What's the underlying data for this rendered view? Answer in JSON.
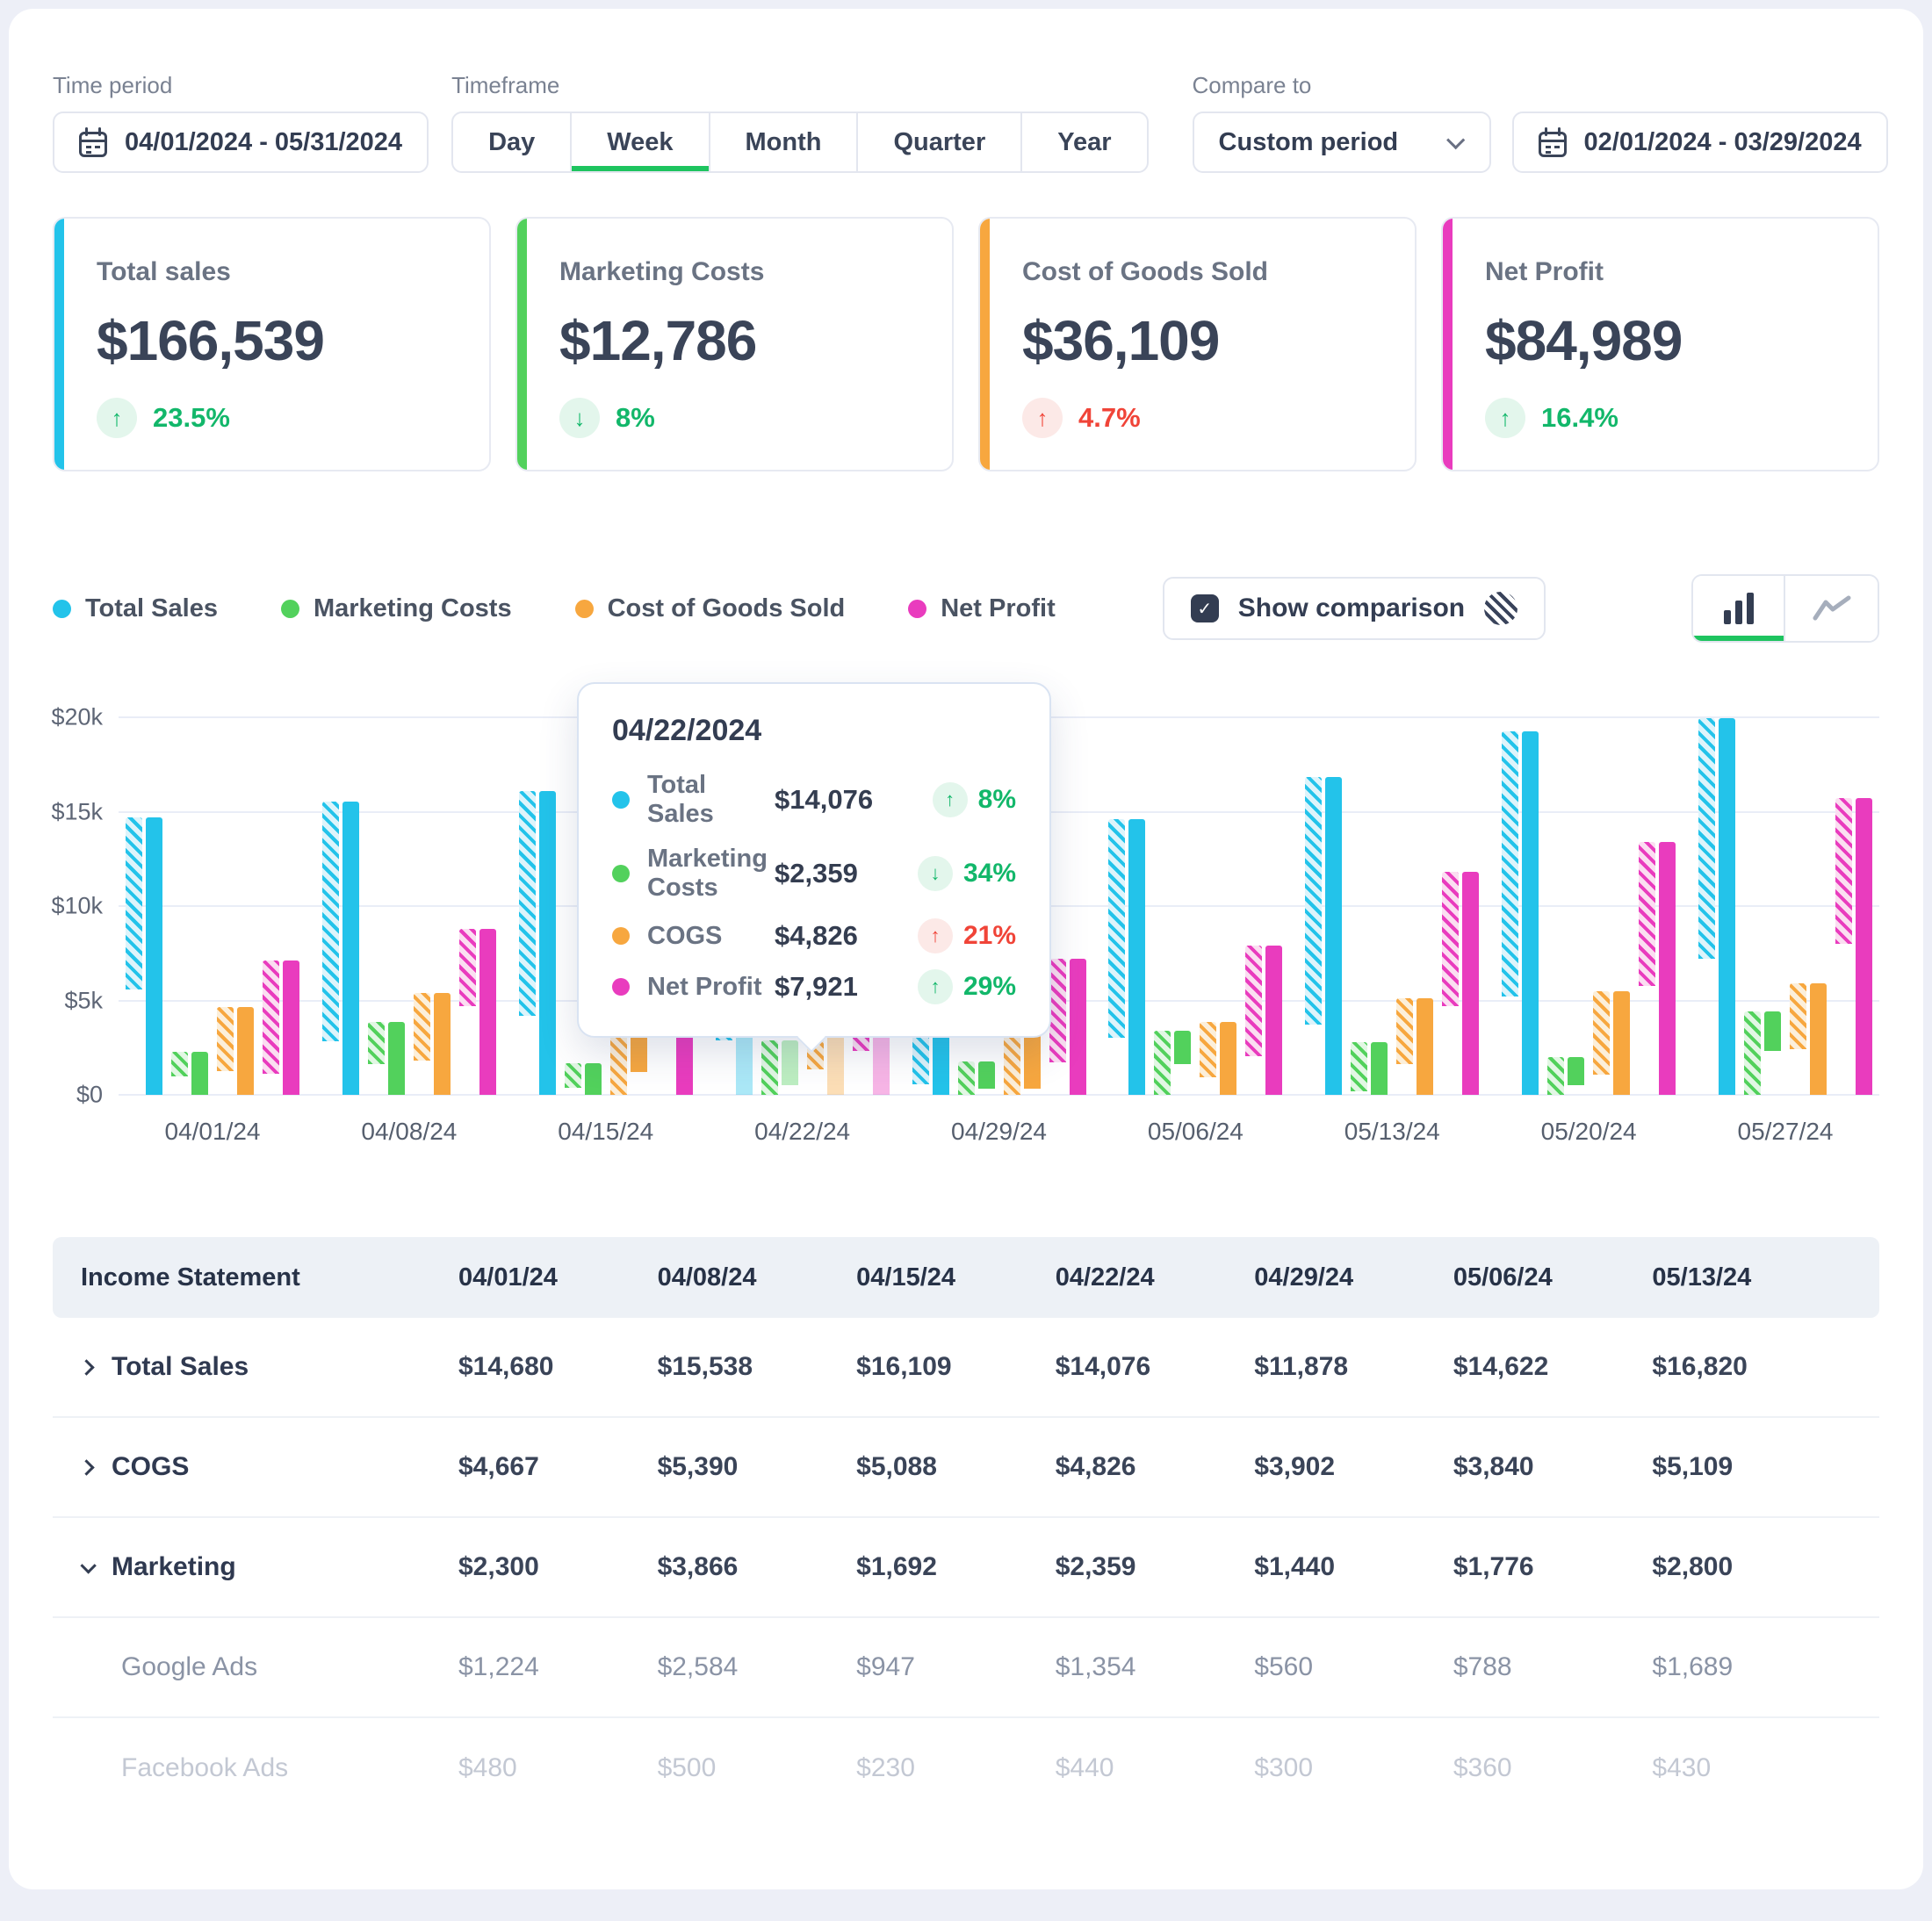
{
  "controls": {
    "time_period": {
      "label": "Time period",
      "value": "04/01/2024 - 05/31/2024"
    },
    "timeframe": {
      "label": "Timeframe",
      "options": [
        "Day",
        "Week",
        "Month",
        "Quarter",
        "Year"
      ],
      "selected": "Week"
    },
    "compare_to": {
      "label": "Compare to",
      "mode": "Custom period",
      "value": "02/01/2024 - 03/29/2024"
    }
  },
  "kpis": [
    {
      "title": "Total sales",
      "value": "$166,539",
      "change": "23.5%",
      "direction": "up",
      "trend": "positive",
      "accent": "#23C3EA"
    },
    {
      "title": "Marketing Costs",
      "value": "$12,786",
      "change": "8%",
      "direction": "down",
      "trend": "positive",
      "accent": "#52D15C"
    },
    {
      "title": "Cost of Goods Sold",
      "value": "$36,109",
      "change": "4.7%",
      "direction": "up",
      "trend": "negative",
      "accent": "#F7A73F"
    },
    {
      "title": "Net Profit",
      "value": "$84,989",
      "change": "16.4%",
      "direction": "up",
      "trend": "positive",
      "accent": "#E93CBE"
    }
  ],
  "legend_toolbar": {
    "show_comparison_label": "Show comparison",
    "chart_type_selected": "bar"
  },
  "chart_data": {
    "type": "bar",
    "title": "",
    "xlabel": "",
    "ylabel": "",
    "ylim": [
      0,
      20000
    ],
    "grid": true,
    "legend_position": "top",
    "comparison_style": "hatched",
    "highlighted_category": "04/22/24",
    "yticks": [
      {
        "label": "$20k",
        "value": 20000
      },
      {
        "label": "$15k",
        "value": 15000
      },
      {
        "label": "$10k",
        "value": 10000
      },
      {
        "label": "$5k",
        "value": 5000
      },
      {
        "label": "$0",
        "value": 0
      }
    ],
    "categories": [
      "04/01/24",
      "04/08/24",
      "04/15/24",
      "04/22/24",
      "04/29/24",
      "05/06/24",
      "05/13/24",
      "05/20/24",
      "05/27/24"
    ],
    "series": [
      {
        "name": "Total Sales",
        "color": "#23C3EA",
        "tint": "#DDF4FB",
        "current": [
          14680,
          15538,
          16109,
          14076,
          11878,
          14622,
          16820,
          19250,
          19950
        ],
        "comparison": [
          9100,
          12700,
          11900,
          11200,
          11300,
          11600,
          13100,
          14050,
          12750
        ]
      },
      {
        "name": "Marketing Costs",
        "color": "#52D15C",
        "tint": "#E2F7E4",
        "current": [
          2300,
          3866,
          1692,
          2359,
          1440,
          1776,
          2800,
          1500,
          2100
        ],
        "comparison": [
          1300,
          2250,
          1300,
          2900,
          1750,
          3400,
          2600,
          2000,
          4400
        ]
      },
      {
        "name": "Cost of Goods Sold",
        "color": "#F7A73F",
        "tint": "#FCEFDA",
        "current": [
          4667,
          5390,
          5088,
          4826,
          3902,
          3840,
          5109,
          5500,
          5900
        ],
        "comparison": [
          3400,
          3600,
          6300,
          3500,
          4250,
          2950,
          3500,
          4400,
          3500
        ]
      },
      {
        "name": "Net Profit",
        "color": "#E93CBE",
        "tint": "#FBDEF1",
        "current": [
          7100,
          8800,
          9400,
          7921,
          7200,
          7900,
          11800,
          13400,
          15700
        ],
        "comparison": [
          6000,
          4100,
          4400,
          5600,
          5500,
          5850,
          7100,
          7650,
          7700
        ]
      }
    ]
  },
  "tooltip": {
    "date": "04/22/2024",
    "rows": [
      {
        "name": "Total Sales",
        "color": "#23C3EA",
        "value": "$14,076",
        "direction": "up",
        "pct": "8%",
        "trend": "positive"
      },
      {
        "name": "Marketing Costs",
        "color": "#52D15C",
        "value": "$2,359",
        "direction": "down",
        "pct": "34%",
        "trend": "positive"
      },
      {
        "name": "COGS",
        "color": "#F7A73F",
        "value": "$4,826",
        "direction": "up",
        "pct": "21%",
        "trend": "negative"
      },
      {
        "name": "Net Profit",
        "color": "#E93CBE",
        "value": "$7,921",
        "direction": "up",
        "pct": "29%",
        "trend": "positive"
      }
    ]
  },
  "table": {
    "header": [
      "Income Statement",
      "04/01/24",
      "04/08/24",
      "04/15/24",
      "04/22/24",
      "04/29/24",
      "05/06/24",
      "05/13/24"
    ],
    "rows": [
      {
        "label": "Total Sales",
        "chevron": "right",
        "level": 0,
        "tone": "default",
        "values": [
          "$14,680",
          "$15,538",
          "$16,109",
          "$14,076",
          "$11,878",
          "$14,622",
          "$16,820"
        ]
      },
      {
        "label": "COGS",
        "chevron": "right",
        "level": 0,
        "tone": "default",
        "values": [
          "$4,667",
          "$5,390",
          "$5,088",
          "$4,826",
          "$3,902",
          "$3,840",
          "$5,109"
        ]
      },
      {
        "label": "Marketing",
        "chevron": "down",
        "level": 0,
        "tone": "default",
        "values": [
          "$2,300",
          "$3,866",
          "$1,692",
          "$2,359",
          "$1,440",
          "$1,776",
          "$2,800"
        ]
      },
      {
        "label": "Google Ads",
        "chevron": "none",
        "level": 1,
        "tone": "muted",
        "values": [
          "$1,224",
          "$2,584",
          "$947",
          "$1,354",
          "$560",
          "$788",
          "$1,689"
        ]
      },
      {
        "label": "Facebook Ads",
        "chevron": "none",
        "level": 1,
        "tone": "faint",
        "values": [
          "$480",
          "$500",
          "$230",
          "$440",
          "$300",
          "$360",
          "$430"
        ]
      }
    ]
  }
}
